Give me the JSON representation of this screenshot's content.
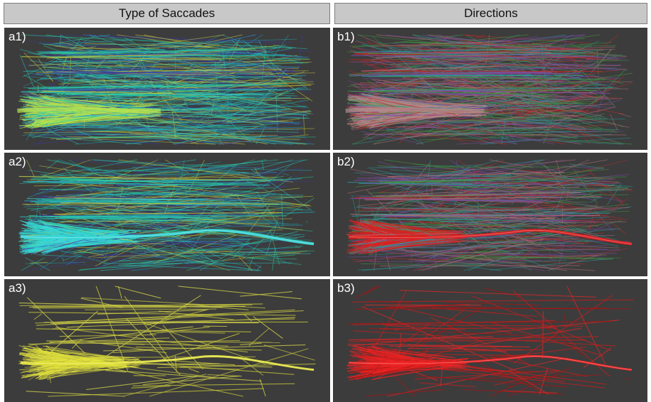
{
  "headers": {
    "left": "Type of Saccades",
    "right": "Directions"
  },
  "panels": [
    {
      "id": "a1",
      "label": "a1)",
      "palette": [
        "#2ec4c4",
        "#1fa3b0",
        "#c8c83a",
        "#3a3aa0",
        "#25d0a0"
      ],
      "bundle_color": "#b6e24e",
      "style": "dense"
    },
    {
      "id": "b1",
      "label": "b1)",
      "palette": [
        "#c02a2a",
        "#2a9a9a",
        "#3f9a3f",
        "#7a4aa8",
        "#b4707a"
      ],
      "bundle_color": "#b08a8a",
      "style": "dense"
    },
    {
      "id": "a2",
      "label": "a2)",
      "palette": [
        "#2ec4c4",
        "#1fa3b0",
        "#c8c83a",
        "#3a3aa0",
        "#25d0a0"
      ],
      "bundle_color": "#3ad8d8",
      "style": "bundled"
    },
    {
      "id": "b2",
      "label": "b2)",
      "palette": [
        "#c02a2a",
        "#2a9a9a",
        "#3f9a3f",
        "#7a4aa8",
        "#b4707a"
      ],
      "bundle_color": "#e02020",
      "style": "bundled"
    },
    {
      "id": "a3",
      "label": "a3)",
      "palette": [
        "#c8c83a",
        "#b8b840",
        "#d4d44a"
      ],
      "bundle_color": "#e4e43c",
      "style": "sparse"
    },
    {
      "id": "b3",
      "label": "b3)",
      "palette": [
        "#c41e1e",
        "#d82828",
        "#a81414"
      ],
      "bundle_color": "#f02424",
      "style": "sparse"
    }
  ]
}
